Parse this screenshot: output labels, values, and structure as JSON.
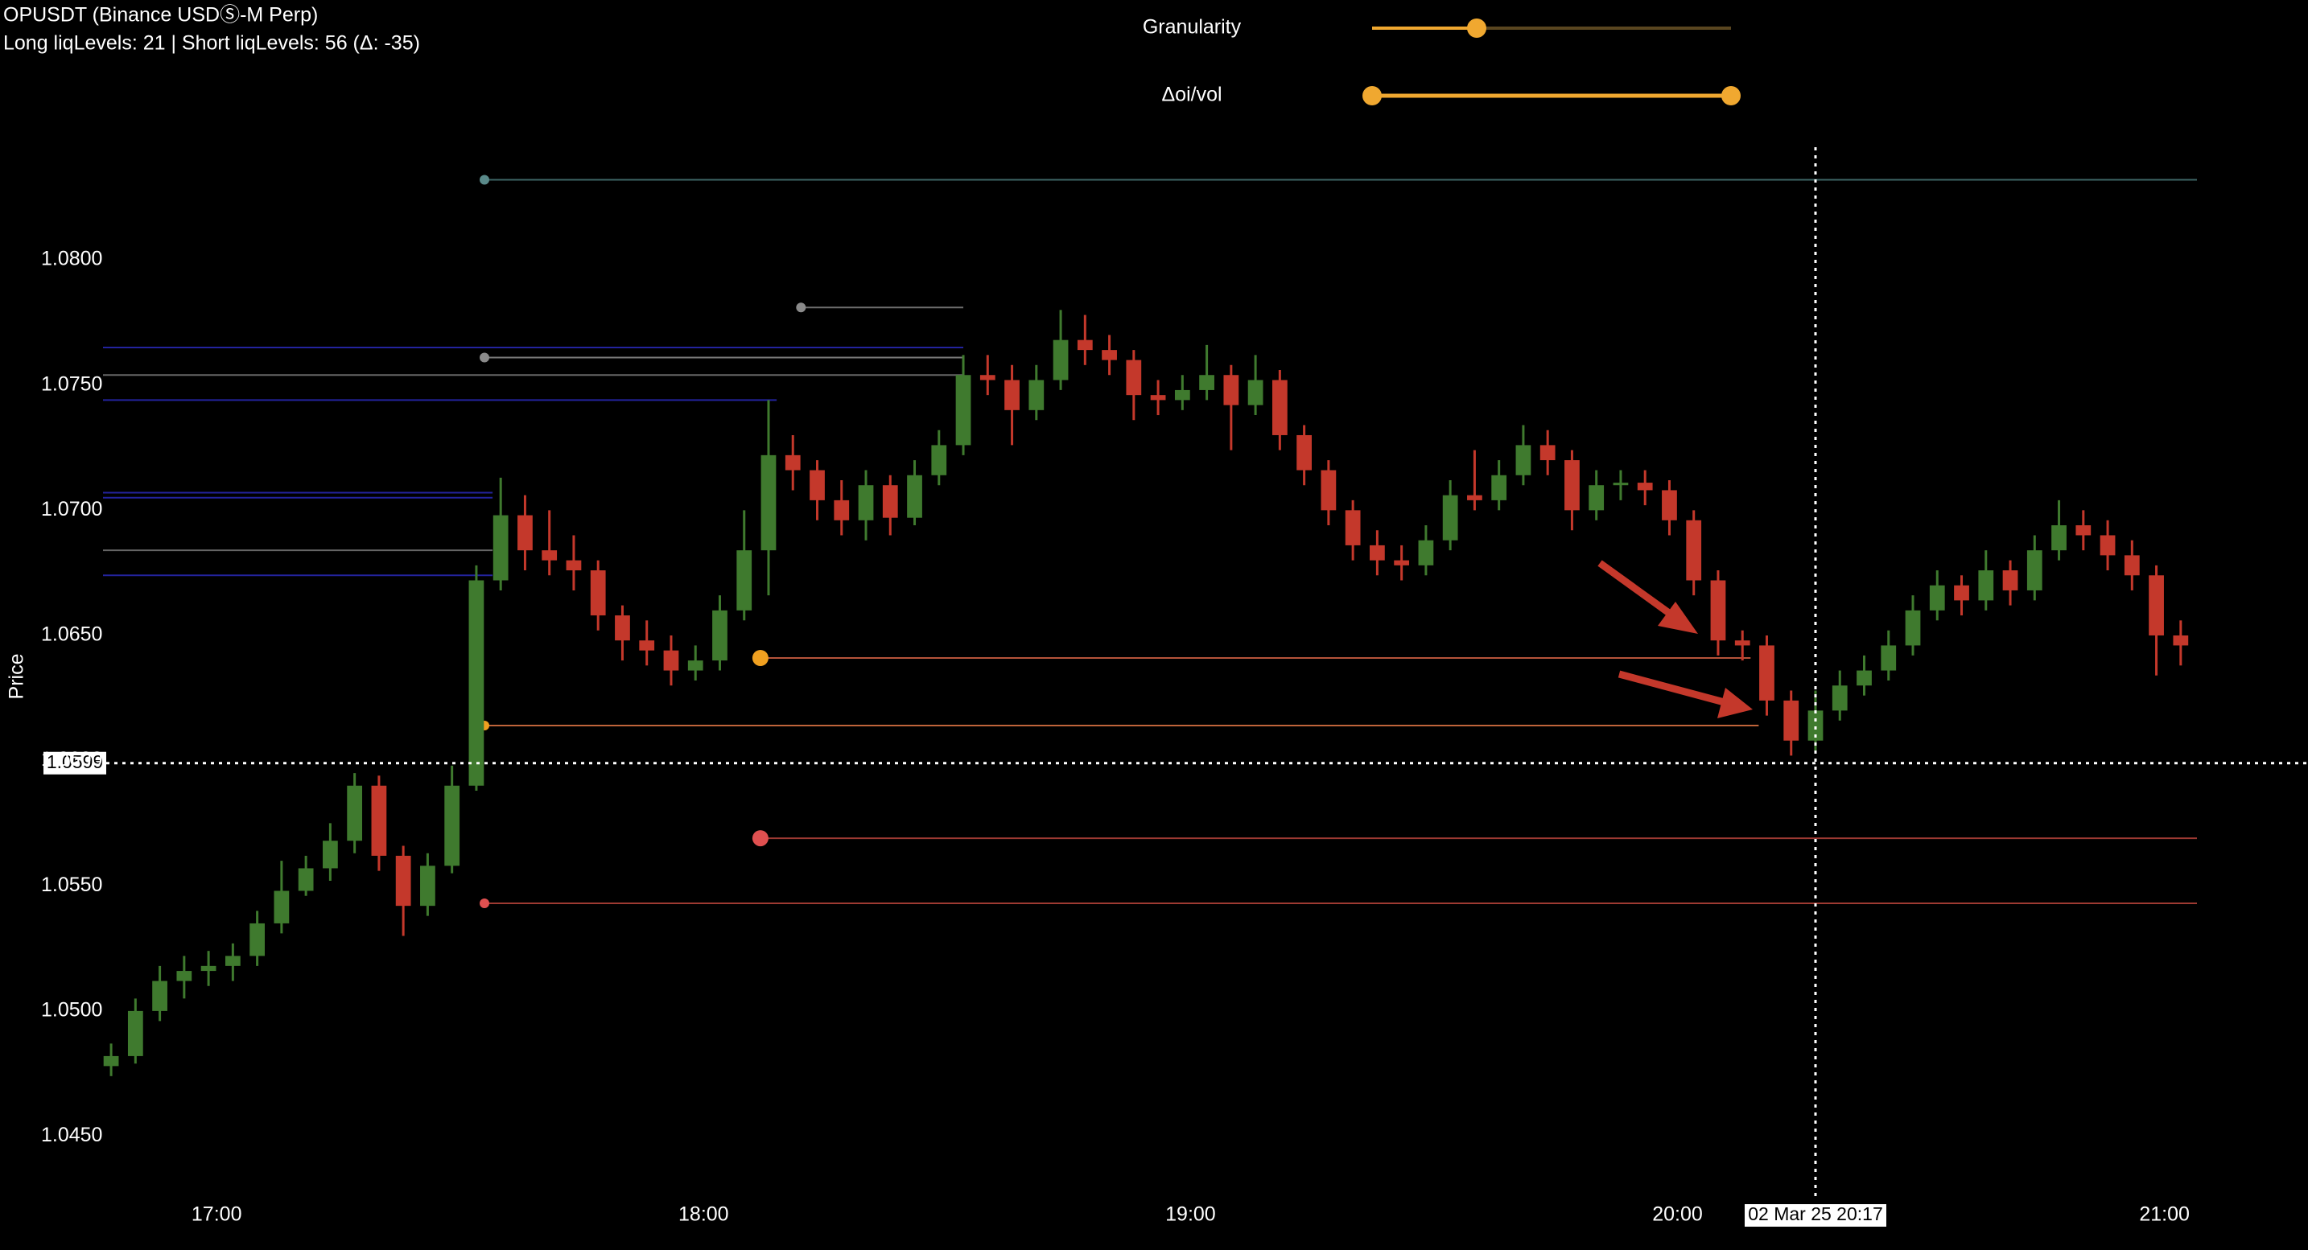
{
  "chart_data": {
    "type": "candlestick",
    "title": "OPUSDT (Binance USDⓈ-M Perp)",
    "subtitle": "Long liqLevels: 21 | Short liqLevels: 56 (Δ: -35)",
    "ylabel": "Price",
    "up_color": "#3f7a2e",
    "down_color": "#c4382b",
    "x": [
      "16:47",
      "16:50",
      "16:53",
      "16:56",
      "16:59",
      "17:02",
      "17:05",
      "17:08",
      "17:11",
      "17:14",
      "17:17",
      "17:20",
      "17:23",
      "17:26",
      "17:29",
      "17:32",
      "17:35",
      "17:38",
      "17:41",
      "17:44",
      "17:47",
      "17:50",
      "17:53",
      "17:56",
      "17:59",
      "18:02",
      "18:05",
      "18:08",
      "18:11",
      "18:14",
      "18:17",
      "18:20",
      "18:23",
      "18:26",
      "18:29",
      "18:32",
      "18:35",
      "18:38",
      "18:41",
      "18:44",
      "18:47",
      "18:50",
      "18:53",
      "18:56",
      "18:59",
      "19:02",
      "19:05",
      "19:08",
      "19:11",
      "19:14",
      "19:17",
      "19:20",
      "19:23",
      "19:26",
      "19:29",
      "19:32",
      "19:35",
      "19:38",
      "19:41",
      "19:44",
      "19:47",
      "19:50",
      "19:53",
      "19:56",
      "19:59",
      "20:02",
      "20:05",
      "20:08",
      "20:11",
      "20:14",
      "20:17",
      "20:20",
      "20:23",
      "20:26",
      "20:29",
      "20:32",
      "20:35",
      "20:38",
      "20:41",
      "20:44",
      "20:47",
      "20:50",
      "20:53",
      "20:56",
      "20:59",
      "21:02"
    ],
    "open": [
      1.0478,
      1.0482,
      1.05,
      1.0512,
      1.0516,
      1.0518,
      1.0522,
      1.0535,
      1.0548,
      1.0557,
      1.0568,
      1.059,
      1.0562,
      1.0542,
      1.0558,
      1.059,
      1.0672,
      1.0698,
      1.0684,
      1.068,
      1.0676,
      1.0658,
      1.0648,
      1.0644,
      1.0636,
      1.064,
      1.066,
      1.0684,
      1.0722,
      1.0716,
      1.0704,
      1.0696,
      1.071,
      1.0697,
      1.0714,
      1.0726,
      1.0754,
      1.0752,
      1.074,
      1.0752,
      1.0768,
      1.0764,
      1.076,
      1.0746,
      1.0744,
      1.0748,
      1.0754,
      1.0742,
      1.0752,
      1.073,
      1.0716,
      1.07,
      1.0686,
      1.068,
      1.0678,
      1.0688,
      1.0706,
      1.0704,
      1.0714,
      1.0726,
      1.072,
      1.07,
      1.071,
      1.0711,
      1.0708,
      1.0696,
      1.0672,
      1.0648,
      1.0646,
      1.0624,
      1.0608,
      1.062,
      1.063,
      1.0636,
      1.0646,
      1.066,
      1.067,
      1.0664,
      1.0676,
      1.0668,
      1.0684,
      1.0694,
      1.069,
      1.0682,
      1.0674,
      1.065
    ],
    "high": [
      1.0487,
      1.0505,
      1.0518,
      1.0522,
      1.0524,
      1.0527,
      1.054,
      1.056,
      1.0562,
      1.0575,
      1.0595,
      1.0594,
      1.0566,
      1.0563,
      1.0598,
      1.0678,
      1.0713,
      1.0706,
      1.07,
      1.069,
      1.068,
      1.0662,
      1.0656,
      1.065,
      1.0646,
      1.0666,
      1.07,
      1.0744,
      1.073,
      1.072,
      1.0712,
      1.0716,
      1.0714,
      1.072,
      1.0732,
      1.0762,
      1.0762,
      1.0758,
      1.0758,
      1.078,
      1.0778,
      1.077,
      1.0764,
      1.0752,
      1.0754,
      1.0766,
      1.0758,
      1.0762,
      1.0756,
      1.0734,
      1.072,
      1.0704,
      1.0692,
      1.0686,
      1.0694,
      1.0712,
      1.0724,
      1.072,
      1.0734,
      1.0732,
      1.0724,
      1.0716,
      1.0716,
      1.0716,
      1.0712,
      1.07,
      1.0676,
      1.0652,
      1.065,
      1.0628,
      1.0628,
      1.0636,
      1.0642,
      1.0652,
      1.0666,
      1.0676,
      1.0674,
      1.0684,
      1.068,
      1.069,
      1.0704,
      1.07,
      1.0696,
      1.0688,
      1.0678,
      1.0656
    ],
    "low": [
      1.0474,
      1.0479,
      1.0496,
      1.0505,
      1.051,
      1.0512,
      1.0518,
      1.0531,
      1.0546,
      1.0552,
      1.0563,
      1.0556,
      1.053,
      1.0538,
      1.0555,
      1.0588,
      1.0668,
      1.0676,
      1.0674,
      1.0668,
      1.0652,
      1.064,
      1.0638,
      1.063,
      1.0632,
      1.0636,
      1.0656,
      1.0666,
      1.0708,
      1.0696,
      1.069,
      1.0688,
      1.069,
      1.0694,
      1.071,
      1.0722,
      1.0746,
      1.0726,
      1.0736,
      1.0748,
      1.0758,
      1.0754,
      1.0736,
      1.0738,
      1.074,
      1.0744,
      1.0724,
      1.0738,
      1.0724,
      1.071,
      1.0694,
      1.068,
      1.0674,
      1.0672,
      1.0674,
      1.0684,
      1.07,
      1.07,
      1.071,
      1.0714,
      1.0692,
      1.0696,
      1.0704,
      1.0702,
      1.069,
      1.0666,
      1.0642,
      1.064,
      1.0618,
      1.0602,
      1.0604,
      1.0616,
      1.0626,
      1.0632,
      1.0642,
      1.0656,
      1.0658,
      1.066,
      1.0662,
      1.0664,
      1.068,
      1.0684,
      1.0676,
      1.0668,
      1.0634,
      1.0638
    ],
    "close": [
      1.0482,
      1.05,
      1.0512,
      1.0516,
      1.0518,
      1.0522,
      1.0535,
      1.0548,
      1.0557,
      1.0568,
      1.059,
      1.0562,
      1.0542,
      1.0558,
      1.059,
      1.0672,
      1.0698,
      1.0684,
      1.068,
      1.0676,
      1.0658,
      1.0648,
      1.0644,
      1.0636,
      1.064,
      1.066,
      1.0684,
      1.0722,
      1.0716,
      1.0704,
      1.0696,
      1.071,
      1.0697,
      1.0714,
      1.0726,
      1.0754,
      1.0752,
      1.074,
      1.0752,
      1.0768,
      1.0764,
      1.076,
      1.0746,
      1.0744,
      1.0748,
      1.0754,
      1.0742,
      1.0752,
      1.073,
      1.0716,
      1.07,
      1.0686,
      1.068,
      1.0678,
      1.0688,
      1.0706,
      1.0704,
      1.0714,
      1.0726,
      1.072,
      1.07,
      1.071,
      1.0711,
      1.0708,
      1.0696,
      1.0672,
      1.0648,
      1.0646,
      1.0624,
      1.0608,
      1.062,
      1.063,
      1.0636,
      1.0646,
      1.066,
      1.067,
      1.0664,
      1.0676,
      1.0668,
      1.0684,
      1.0694,
      1.069,
      1.0682,
      1.0674,
      1.065,
      1.0646
    ],
    "xlim": [
      "16:46",
      "21:04"
    ],
    "xticks": [
      "17:00",
      "18:00",
      "19:00",
      "20:00",
      "21:00"
    ],
    "ylim": [
      1.0428,
      1.0845
    ],
    "yticks": [
      {
        "value": 1.045,
        "label": "1.0450"
      },
      {
        "value": 1.05,
        "label": "1.0500"
      },
      {
        "value": 1.055,
        "label": "1.0550"
      },
      {
        "value": 1.06,
        "label": "1.0600"
      },
      {
        "value": 1.065,
        "label": "1.0650"
      },
      {
        "value": 1.07,
        "label": "1.0700"
      },
      {
        "value": 1.075,
        "label": "1.0750"
      },
      {
        "value": 1.08,
        "label": "1.0800"
      }
    ],
    "levels": [
      {
        "price": 1.0832,
        "start": "17:33",
        "end": "21:04",
        "color": "#3e6666",
        "dot": "small",
        "dot_color": "#5a8a8a"
      },
      {
        "price": 1.0781,
        "start": "18:12",
        "end": "18:32",
        "color": "#6e6e6e",
        "dot": "small",
        "dot_color": "#8a8a8a"
      },
      {
        "price": 1.0765,
        "start": "16:46",
        "end": "18:32",
        "color": "#23239e"
      },
      {
        "price": 1.0761,
        "start": "17:33",
        "end": "18:32",
        "color": "#7a7a7a",
        "dot": "small",
        "dot_color": "#8a8a8a"
      },
      {
        "price": 1.0754,
        "start": "16:46",
        "end": "18:32",
        "color": "#666666"
      },
      {
        "price": 1.0744,
        "start": "16:46",
        "end": "18:09",
        "color": "#23239e"
      },
      {
        "price": 1.0707,
        "start": "16:46",
        "end": "17:34",
        "color": "#23239e"
      },
      {
        "price": 1.0705,
        "start": "16:46",
        "end": "17:34",
        "color": "#23239e"
      },
      {
        "price": 1.0684,
        "start": "16:46",
        "end": "17:34",
        "color": "#666666"
      },
      {
        "price": 1.0674,
        "start": "16:46",
        "end": "17:34",
        "color": "#23239e"
      },
      {
        "price": 1.0641,
        "start": "18:07",
        "end": "20:09",
        "color": "#b5533a",
        "dot": "large",
        "dot_color": "#f0a020"
      },
      {
        "price": 1.0614,
        "start": "17:33",
        "end": "20:10",
        "color": "#c0643a",
        "dot": "small",
        "dot_color": "#f0a020"
      },
      {
        "price": 1.0569,
        "start": "18:07",
        "end": "21:04",
        "color": "#9e3a32",
        "dot": "large",
        "dot_color": "#e05050"
      },
      {
        "price": 1.0543,
        "start": "17:33",
        "end": "21:04",
        "color": "#9e3a32",
        "dot": "small",
        "dot_color": "#e05050"
      }
    ],
    "crosshair": {
      "x": "20:17",
      "x_label": "02 Mar 25 20:17",
      "y": 1.0599
    }
  },
  "controls": [
    {
      "label": "Granularity"
    },
    {
      "label": "Δoi/vol"
    }
  ]
}
